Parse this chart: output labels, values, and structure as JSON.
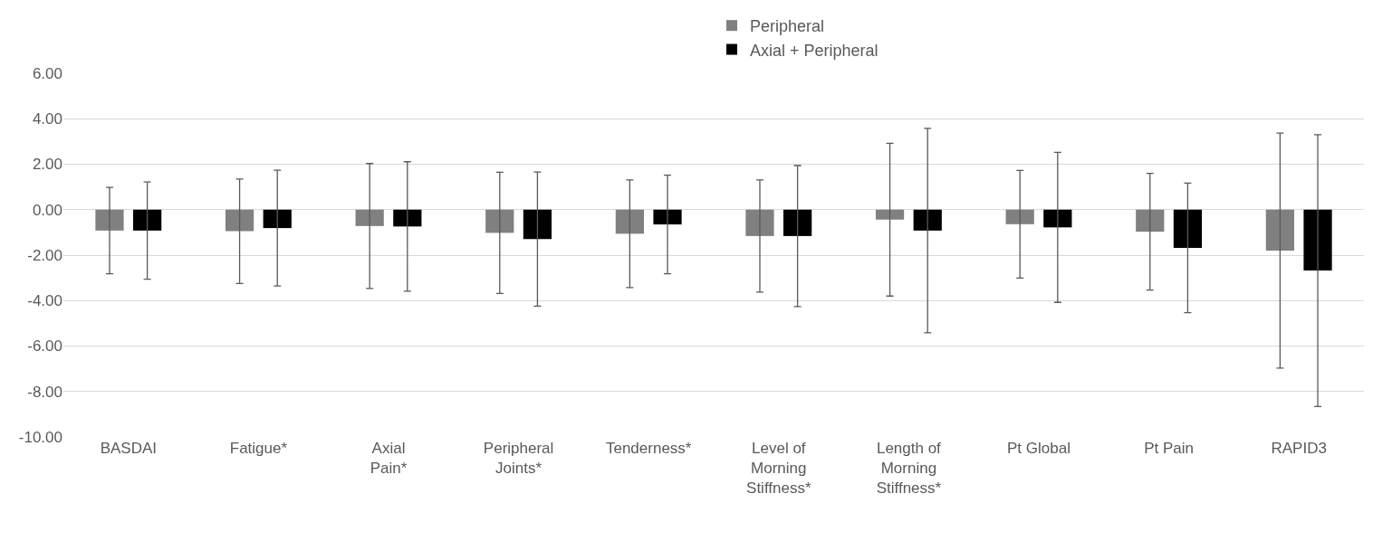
{
  "chart_data": {
    "type": "bar",
    "categories": [
      "BASDAI",
      "Fatigue*",
      "Axial Pain*",
      "Peripheral Joints*",
      "Tenderness*",
      "Level of Morning Stiffness*",
      "Length of Morning Stiffness*",
      "Pt Global",
      "Pt Pain",
      "RAPID3"
    ],
    "series": [
      {
        "name": "Peripheral",
        "color": "#808080",
        "values": [
          -0.92,
          -0.95,
          -0.72,
          -1.02,
          -1.06,
          -1.16,
          -0.44,
          -0.64,
          -0.97,
          -1.8
        ],
        "errors": [
          1.9,
          2.3,
          2.75,
          2.67,
          2.37,
          2.47,
          3.36,
          2.37,
          2.57,
          5.17
        ]
      },
      {
        "name": "Axial + Peripheral",
        "color": "#000000",
        "values": [
          -0.92,
          -0.81,
          -0.74,
          -1.29,
          -0.65,
          -1.16,
          -0.92,
          -0.78,
          -1.68,
          -2.68
        ],
        "errors": [
          2.14,
          2.55,
          2.85,
          2.95,
          2.17,
          3.1,
          4.5,
          3.3,
          2.85,
          5.98
        ]
      }
    ],
    "ylim": [
      -10,
      6
    ],
    "yticks": [
      {
        "value": -10,
        "label": "-10.00"
      },
      {
        "value": -8,
        "label": "-8.00"
      },
      {
        "value": -6,
        "label": "-6.00"
      },
      {
        "value": -4,
        "label": "-4.00"
      },
      {
        "value": -2,
        "label": "-2.00"
      },
      {
        "value": 0,
        "label": "0.00"
      },
      {
        "value": 2,
        "label": "2.00"
      },
      {
        "value": 4,
        "label": "4.00"
      },
      {
        "value": 6,
        "label": "6.00"
      }
    ],
    "grid": "y",
    "legend": "top"
  }
}
